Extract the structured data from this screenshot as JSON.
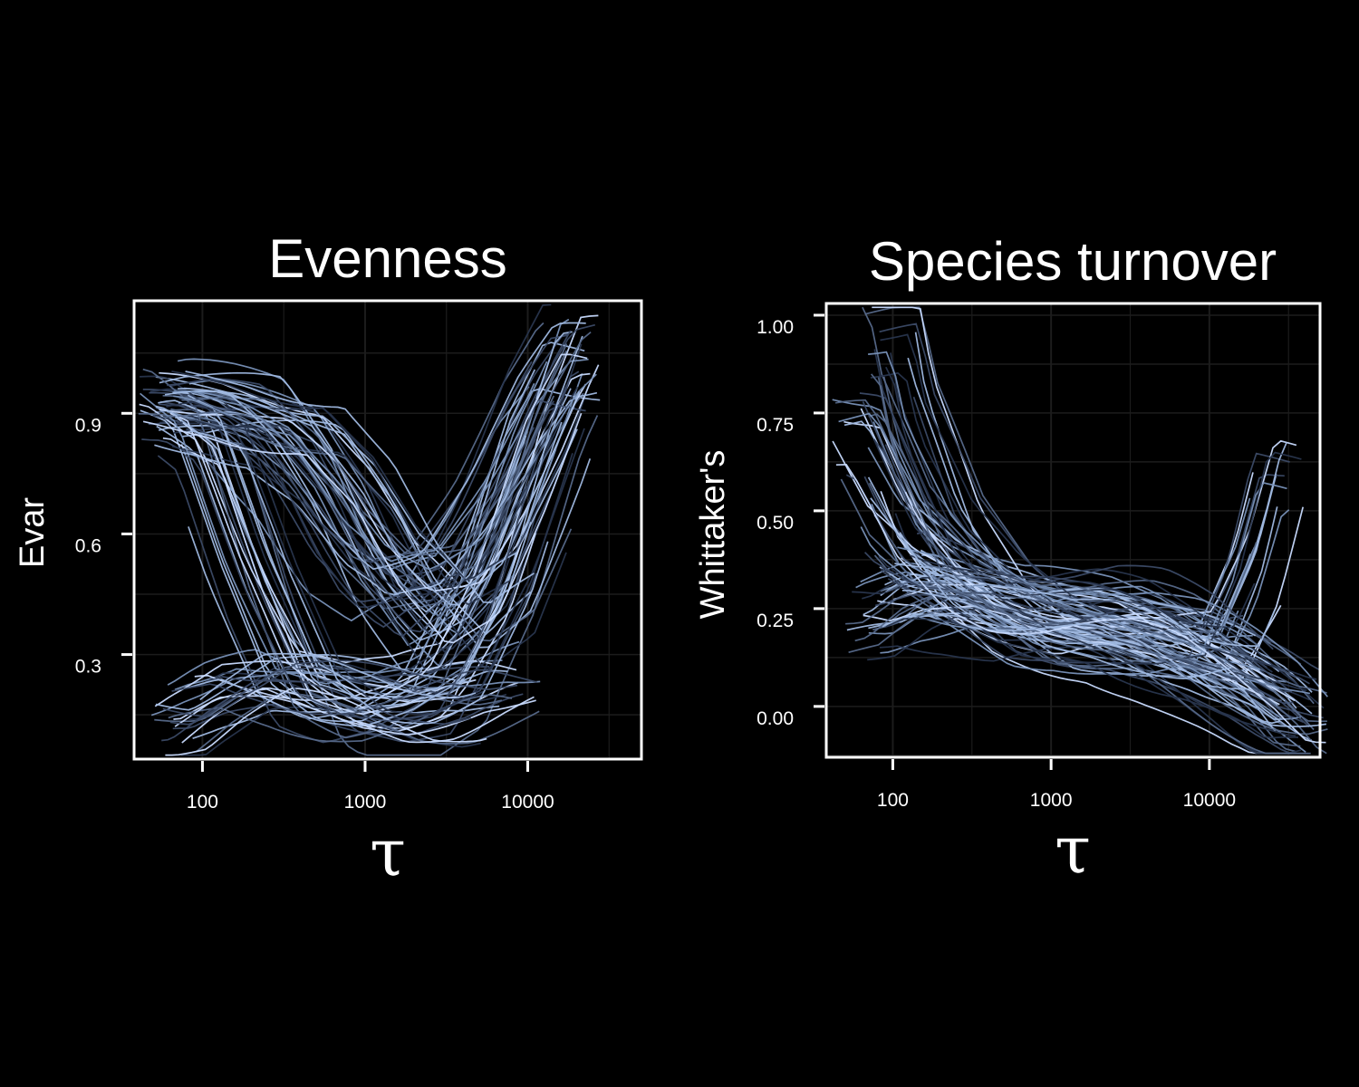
{
  "chart_data": [
    {
      "type": "line",
      "title": "Evenness",
      "xlabel": "τ",
      "ylabel": "Evar",
      "xscale": "log",
      "xlim": [
        38,
        50000
      ],
      "ylim": [
        0.04,
        1.18
      ],
      "xticks": [
        100,
        1000,
        10000
      ],
      "xtick_labels": [
        "100",
        "1000",
        "10000"
      ],
      "yticks": [
        0.3,
        0.6,
        0.9
      ],
      "ytick_labels": [
        "0.3",
        "0.6",
        "0.9"
      ],
      "grid": true,
      "legend": "none",
      "series_count": 100,
      "archetypes": [
        {
          "pattern": "high-to-low-to-high",
          "x": [
            50,
            100,
            200,
            400,
            800,
            1500,
            3000,
            6000,
            12000,
            20000
          ],
          "y": [
            0.93,
            0.92,
            0.88,
            0.75,
            0.55,
            0.45,
            0.5,
            0.7,
            0.95,
            1.08
          ]
        },
        {
          "pattern": "early-drop",
          "x": [
            50,
            100,
            200,
            400,
            800,
            1500,
            3000,
            6000,
            12000,
            20000
          ],
          "y": [
            0.92,
            0.85,
            0.5,
            0.22,
            0.15,
            0.15,
            0.2,
            0.45,
            0.85,
            1.05
          ]
        },
        {
          "pattern": "late-drop",
          "x": [
            50,
            100,
            200,
            400,
            800,
            1500,
            3000,
            6000,
            12000,
            20000
          ],
          "y": [
            0.92,
            0.92,
            0.9,
            0.88,
            0.72,
            0.5,
            0.35,
            0.45,
            0.75,
            1.0
          ]
        },
        {
          "pattern": "low-flat",
          "x": [
            60,
            100,
            200,
            400,
            800,
            1500,
            3000,
            6000,
            9000
          ],
          "y": [
            0.12,
            0.17,
            0.22,
            0.2,
            0.17,
            0.15,
            0.16,
            0.2,
            0.22
          ]
        }
      ]
    },
    {
      "type": "line",
      "title": "Species turnover",
      "xlabel": "τ",
      "ylabel": "Whittaker's",
      "xscale": "log",
      "xlim": [
        38,
        50000
      ],
      "ylim": [
        -0.13,
        1.03
      ],
      "xticks": [
        100,
        1000,
        10000
      ],
      "xtick_labels": [
        "100",
        "1000",
        "10000"
      ],
      "yticks": [
        0.0,
        0.25,
        0.5,
        0.75,
        1.0
      ],
      "ytick_labels": [
        "0.00",
        "0.25",
        "0.50",
        "0.75",
        "1.00"
      ],
      "grid": true,
      "legend": "none",
      "series_count": 100,
      "archetypes": [
        {
          "pattern": "decay-then-plateau",
          "x": [
            50,
            100,
            200,
            400,
            800,
            1500,
            3000,
            6000,
            12000,
            25000,
            40000
          ],
          "y": [
            0.7,
            0.45,
            0.33,
            0.28,
            0.27,
            0.27,
            0.25,
            0.2,
            0.12,
            0.03,
            -0.05
          ]
        },
        {
          "pattern": "steep-decay",
          "x": [
            80,
            100,
            200,
            400,
            800,
            1500,
            3000,
            6000,
            12000,
            25000,
            40000
          ],
          "y": [
            0.95,
            0.75,
            0.45,
            0.3,
            0.22,
            0.2,
            0.18,
            0.12,
            0.05,
            -0.02,
            -0.05
          ]
        },
        {
          "pattern": "low-start",
          "x": [
            60,
            100,
            200,
            400,
            800,
            1500,
            3000,
            6000,
            12000,
            25000,
            40000
          ],
          "y": [
            0.2,
            0.25,
            0.28,
            0.25,
            0.2,
            0.2,
            0.2,
            0.15,
            0.1,
            0.02,
            -0.05
          ]
        },
        {
          "pattern": "late-rise",
          "x": [
            100,
            200,
            400,
            800,
            1500,
            3000,
            6000,
            12000,
            20000,
            30000
          ],
          "y": [
            0.35,
            0.3,
            0.25,
            0.2,
            0.2,
            0.18,
            0.15,
            0.15,
            0.35,
            0.62
          ]
        }
      ]
    }
  ],
  "colors": {
    "background": "#000000",
    "axes": "#ffffff",
    "grid": "#1c1c1c",
    "series_palette": [
      "#c8dbff",
      "#9fb8e0",
      "#7891b8",
      "#56698a",
      "#3b4a66",
      "#28354d"
    ]
  }
}
